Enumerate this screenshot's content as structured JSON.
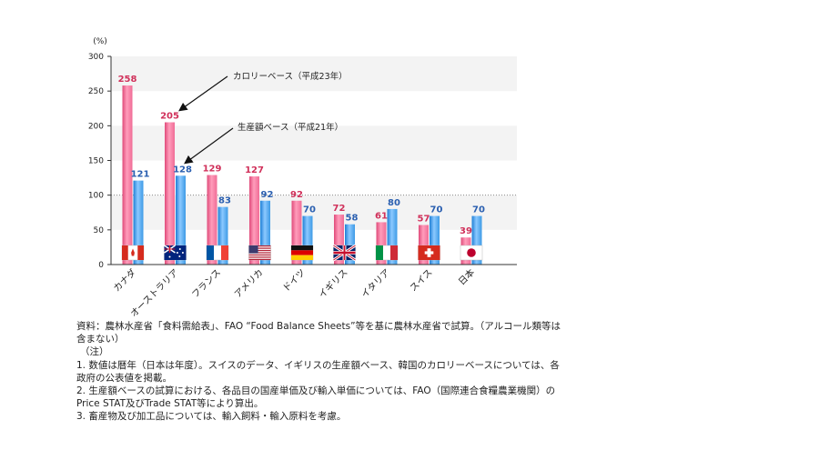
{
  "chart_data": {
    "type": "bar",
    "unit_label": "(%)",
    "categories": [
      "カナダ",
      "オーストラリア",
      "フランス",
      "アメリカ",
      "ドイツ",
      "イギリス",
      "イタリア",
      "スイス",
      "日本"
    ],
    "series": [
      {
        "name": "カロリーベース（平成23年）",
        "values": [
          258,
          205,
          129,
          127,
          92,
          72,
          61,
          57,
          39
        ]
      },
      {
        "name": "生産額ベース（平成21年）",
        "values": [
          121,
          128,
          83,
          92,
          70,
          58,
          80,
          70,
          70
        ]
      }
    ],
    "ylim": [
      0,
      300
    ],
    "yticks": [
      "0",
      "50",
      "100",
      "150",
      "200",
      "250",
      "300"
    ],
    "reference_line": 100,
    "grid": "alternating bands",
    "flags": [
      "canada-flag",
      "australia-flag",
      "france-flag",
      "usa-flag",
      "germany-flag",
      "uk-flag",
      "italy-flag",
      "switzerland-flag",
      "japan-flag"
    ],
    "colors": {
      "calorie": "#f06c96",
      "production": "#3d9ae6",
      "calorie_label": "#d0305a",
      "production_label": "#2a5fb0"
    }
  },
  "notes": {
    "source_line1": "資料：農林水産省「食料需給表」、FAO “Food Balance Sheets”等を基に農林水産省で試算。（アルコール類等は",
    "source_line2": "含まない）",
    "note_header": "（注）",
    "note1_line1": "1. 数値は暦年（日本は年度）。スイスのデータ、イギリスの生産額ベース、韓国のカロリーベースについては、各",
    "note1_line2": "政府の公表値を掲載。",
    "note2_line1": "2. 生産額ベースの試算における、各品目の国産単価及び輸入単価については、FAO（国際連合食糧農業機関）の",
    "note2_line2": "Price STAT及びTrade STAT等により算出。",
    "note3": "3. 畜産物及び加工品については、輸入飼料・輸入原料を考慮。"
  }
}
